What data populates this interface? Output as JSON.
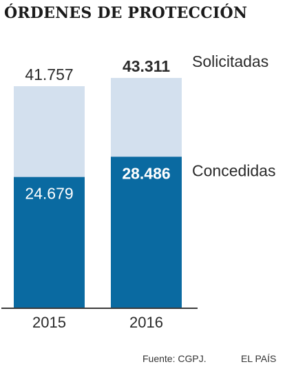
{
  "chart_data": {
    "type": "bar",
    "stacked": false,
    "title": "ÓRDENES DE PROTECCIÓN",
    "categories": [
      "2015",
      "2016"
    ],
    "series": [
      {
        "name": "Solicitadas",
        "values": [
          41757,
          43311
        ],
        "labels": [
          "41.757",
          "43.311"
        ],
        "color": "#d3e0ee"
      },
      {
        "name": "Concedidas",
        "values": [
          24679,
          28486
        ],
        "labels": [
          "24.679",
          "28.486"
        ],
        "color": "#0a6aa1"
      }
    ],
    "ylim": [
      0,
      43311
    ],
    "grid": false,
    "legend": "right"
  },
  "footer": {
    "source": "Fuente: CGPJ.",
    "brand": "EL PAÍS"
  }
}
